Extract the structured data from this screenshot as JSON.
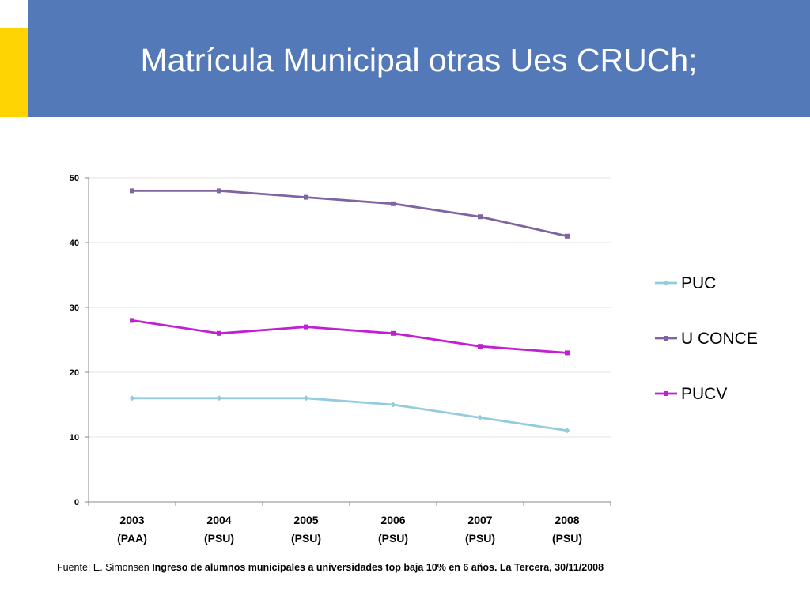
{
  "slide": {
    "title": "Matrícula Municipal otras Ues CRUCh;",
    "colors": {
      "title_bar": "#5479b9",
      "accent": "#ffd400"
    }
  },
  "chart_data": {
    "type": "line",
    "title": "",
    "xlabel": "",
    "ylabel": "",
    "ylim": [
      0,
      50
    ],
    "yticks": [
      0,
      10,
      20,
      30,
      40,
      50
    ],
    "categories": [
      "2003",
      "2004",
      "2005",
      "2006",
      "2007",
      "2008"
    ],
    "category_sublabels": [
      "(PAA)",
      "(PSU)",
      "(PSU)",
      "(PSU)",
      "(PSU)",
      "(PSU)"
    ],
    "grid": true,
    "legend_position": "right",
    "series": [
      {
        "name": "PUC",
        "values": [
          16,
          16,
          16,
          15,
          13,
          11
        ],
        "color": "#93cddd",
        "marker": "diamond"
      },
      {
        "name": "U CONCE",
        "values": [
          48,
          48,
          47,
          46,
          44,
          41
        ],
        "color": "#8064a2",
        "marker": "square"
      },
      {
        "name": "PUCV",
        "values": [
          28,
          26,
          27,
          26,
          24,
          23
        ],
        "color": "#c01fd3",
        "marker": "square"
      }
    ]
  },
  "source": {
    "prefix": "Fuente: E. Simonsen ",
    "bold": "Ingreso de alumnos municipales a universidades top baja 10% en 6 años. La Tercera, 30/11/2008"
  }
}
